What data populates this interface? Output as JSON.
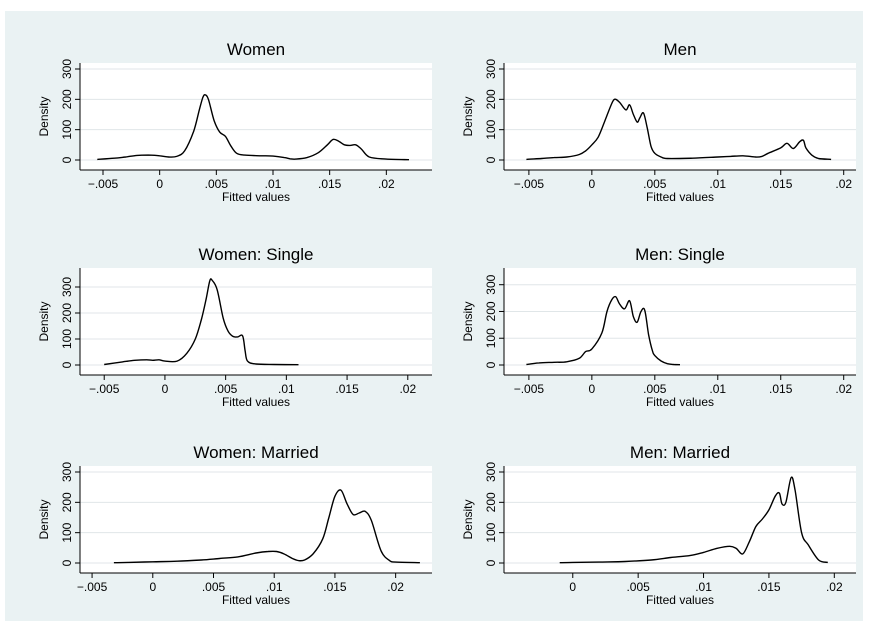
{
  "chart_data": [
    {
      "type": "line",
      "title": "Women",
      "xlabel": "Fitted values",
      "ylabel": "Density",
      "xlim": [
        -0.0065,
        0.0235
      ],
      "ylim": [
        0,
        300
      ],
      "xticks": [
        "-.005",
        "0",
        ".005",
        ".01",
        ".015",
        ".02"
      ],
      "yticks": [
        "0",
        "100",
        "200",
        "300"
      ],
      "grid": true,
      "series": [
        {
          "x": [
            -0.0055,
            -0.004,
            -0.003,
            -0.002,
            -0.001,
            0.0,
            0.0008,
            0.0015,
            0.0022,
            0.003,
            0.0035,
            0.0038,
            0.004,
            0.0043,
            0.0048,
            0.0053,
            0.0058,
            0.0063,
            0.0068,
            0.0075,
            0.009,
            0.01,
            0.011,
            0.0115,
            0.012,
            0.013,
            0.014,
            0.0148,
            0.0153,
            0.0158,
            0.0163,
            0.0168,
            0.0173,
            0.0178,
            0.0185,
            0.02,
            0.022
          ],
          "y": [
            2,
            6,
            10,
            15,
            16,
            14,
            10,
            12,
            30,
            95,
            165,
            205,
            215,
            200,
            130,
            92,
            78,
            45,
            22,
            16,
            14,
            13,
            8,
            4,
            3,
            8,
            24,
            50,
            68,
            62,
            50,
            48,
            50,
            36,
            10,
            3,
            1
          ]
        }
      ]
    },
    {
      "type": "line",
      "title": "Men",
      "xlabel": "Fitted values",
      "ylabel": "Density",
      "xlim": [
        -0.0065,
        0.0205
      ],
      "ylim": [
        0,
        300
      ],
      "xticks": [
        "-.005",
        "0",
        ".005",
        ".01",
        ".015",
        ".02"
      ],
      "yticks": [
        "0",
        "100",
        "200",
        "300"
      ],
      "grid": true,
      "series": [
        {
          "x": [
            -0.0052,
            -0.004,
            -0.003,
            -0.002,
            -0.001,
            -0.0005,
            0.0,
            0.0005,
            0.001,
            0.0015,
            0.0018,
            0.0022,
            0.0027,
            0.003,
            0.0033,
            0.0036,
            0.0038,
            0.0041,
            0.0044,
            0.0047,
            0.005,
            0.0055,
            0.006,
            0.008,
            0.01,
            0.011,
            0.012,
            0.013,
            0.0135,
            0.014,
            0.015,
            0.0155,
            0.016,
            0.0165,
            0.0168,
            0.017,
            0.0175,
            0.018,
            0.019
          ],
          "y": [
            2,
            5,
            8,
            10,
            18,
            30,
            50,
            75,
            125,
            178,
            200,
            190,
            165,
            182,
            150,
            125,
            138,
            155,
            105,
            45,
            22,
            10,
            5,
            6,
            10,
            12,
            14,
            10,
            12,
            22,
            40,
            55,
            38,
            60,
            65,
            40,
            15,
            5,
            2
          ]
        }
      ]
    },
    {
      "type": "line",
      "title": "Women: Single",
      "xlabel": "Fitted values",
      "ylabel": "Density",
      "xlim": [
        -0.0065,
        0.0215
      ],
      "ylim": [
        0,
        350
      ],
      "xticks": [
        "-.005",
        "0",
        ".005",
        ".01",
        ".015",
        ".02"
      ],
      "yticks": [
        "0",
        "100",
        "200",
        "300"
      ],
      "grid": true,
      "series": [
        {
          "x": [
            -0.005,
            -0.0035,
            -0.0025,
            -0.0015,
            -0.001,
            -0.0005,
            0.0,
            0.001,
            0.0018,
            0.0025,
            0.003,
            0.0034,
            0.0037,
            0.0039,
            0.0043,
            0.0048,
            0.0052,
            0.0056,
            0.006,
            0.0064,
            0.0066,
            0.0068,
            0.0075,
            0.009,
            0.011
          ],
          "y": [
            2,
            12,
            18,
            20,
            18,
            20,
            15,
            15,
            45,
            100,
            175,
            255,
            325,
            325,
            290,
            180,
            130,
            110,
            108,
            112,
            55,
            15,
            4,
            2,
            1
          ]
        }
      ]
    },
    {
      "type": "line",
      "title": "Men: Single",
      "xlabel": "Fitted values",
      "ylabel": "Density",
      "xlim": [
        -0.0065,
        0.0205
      ],
      "ylim": [
        0,
        340
      ],
      "xticks": [
        "-.005",
        "0",
        ".005",
        ".01",
        ".015",
        ".02"
      ],
      "yticks": [
        "0",
        "100",
        "200",
        "300"
      ],
      "grid": true,
      "series": [
        {
          "x": [
            -0.0052,
            -0.0042,
            -0.003,
            -0.002,
            -0.001,
            -0.0005,
            0.0,
            0.0008,
            0.0012,
            0.0016,
            0.0019,
            0.0022,
            0.0026,
            0.003,
            0.0033,
            0.0036,
            0.0039,
            0.0042,
            0.0045,
            0.0048,
            0.005,
            0.0055,
            0.006,
            0.0065,
            0.007
          ],
          "y": [
            2,
            8,
            10,
            12,
            25,
            50,
            60,
            120,
            200,
            245,
            255,
            228,
            210,
            240,
            180,
            160,
            200,
            205,
            115,
            55,
            35,
            15,
            5,
            2,
            1
          ]
        }
      ]
    },
    {
      "type": "line",
      "title": "Women: Married",
      "xlabel": "Fitted values",
      "ylabel": "Density",
      "xlim": [
        -0.0055,
        0.0225
      ],
      "ylim": [
        0,
        300
      ],
      "xticks": [
        "-.005",
        "0",
        ".005",
        ".01",
        ".015",
        ".02"
      ],
      "yticks": [
        "0",
        "100",
        "200",
        "300"
      ],
      "grid": true,
      "series": [
        {
          "x": [
            -0.0032,
            -0.002,
            0.0,
            0.002,
            0.004,
            0.0055,
            0.007,
            0.0085,
            0.0095,
            0.0102,
            0.0108,
            0.0115,
            0.012,
            0.0125,
            0.0132,
            0.014,
            0.0145,
            0.015,
            0.0155,
            0.016,
            0.0165,
            0.017,
            0.0175,
            0.018,
            0.0188,
            0.0195,
            0.02,
            0.022
          ],
          "y": [
            1,
            2,
            4,
            6,
            10,
            15,
            20,
            33,
            38,
            38,
            30,
            15,
            8,
            10,
            30,
            80,
            150,
            220,
            240,
            195,
            160,
            165,
            170,
            140,
            40,
            8,
            3,
            1
          ]
        }
      ]
    },
    {
      "type": "line",
      "title": "Men: Married",
      "xlabel": "Fitted values",
      "ylabel": "Density",
      "xlim": [
        -0.0048,
        0.0212
      ],
      "ylim": [
        0,
        300
      ],
      "xticks": [
        "0",
        ".005",
        ".01",
        ".015",
        ".02"
      ],
      "yticks": [
        "0",
        "100",
        "200",
        "300"
      ],
      "grid": true,
      "series": [
        {
          "x": [
            -0.001,
            0.0,
            0.002,
            0.004,
            0.006,
            0.0075,
            0.009,
            0.01,
            0.011,
            0.012,
            0.0125,
            0.013,
            0.0135,
            0.014,
            0.0145,
            0.015,
            0.0155,
            0.0158,
            0.016,
            0.0163,
            0.0167,
            0.017,
            0.0175,
            0.018,
            0.0188,
            0.0195
          ],
          "y": [
            1,
            2,
            3,
            5,
            10,
            18,
            25,
            35,
            48,
            55,
            48,
            30,
            70,
            120,
            145,
            175,
            222,
            230,
            195,
            200,
            282,
            240,
            100,
            60,
            10,
            2
          ]
        }
      ]
    }
  ]
}
